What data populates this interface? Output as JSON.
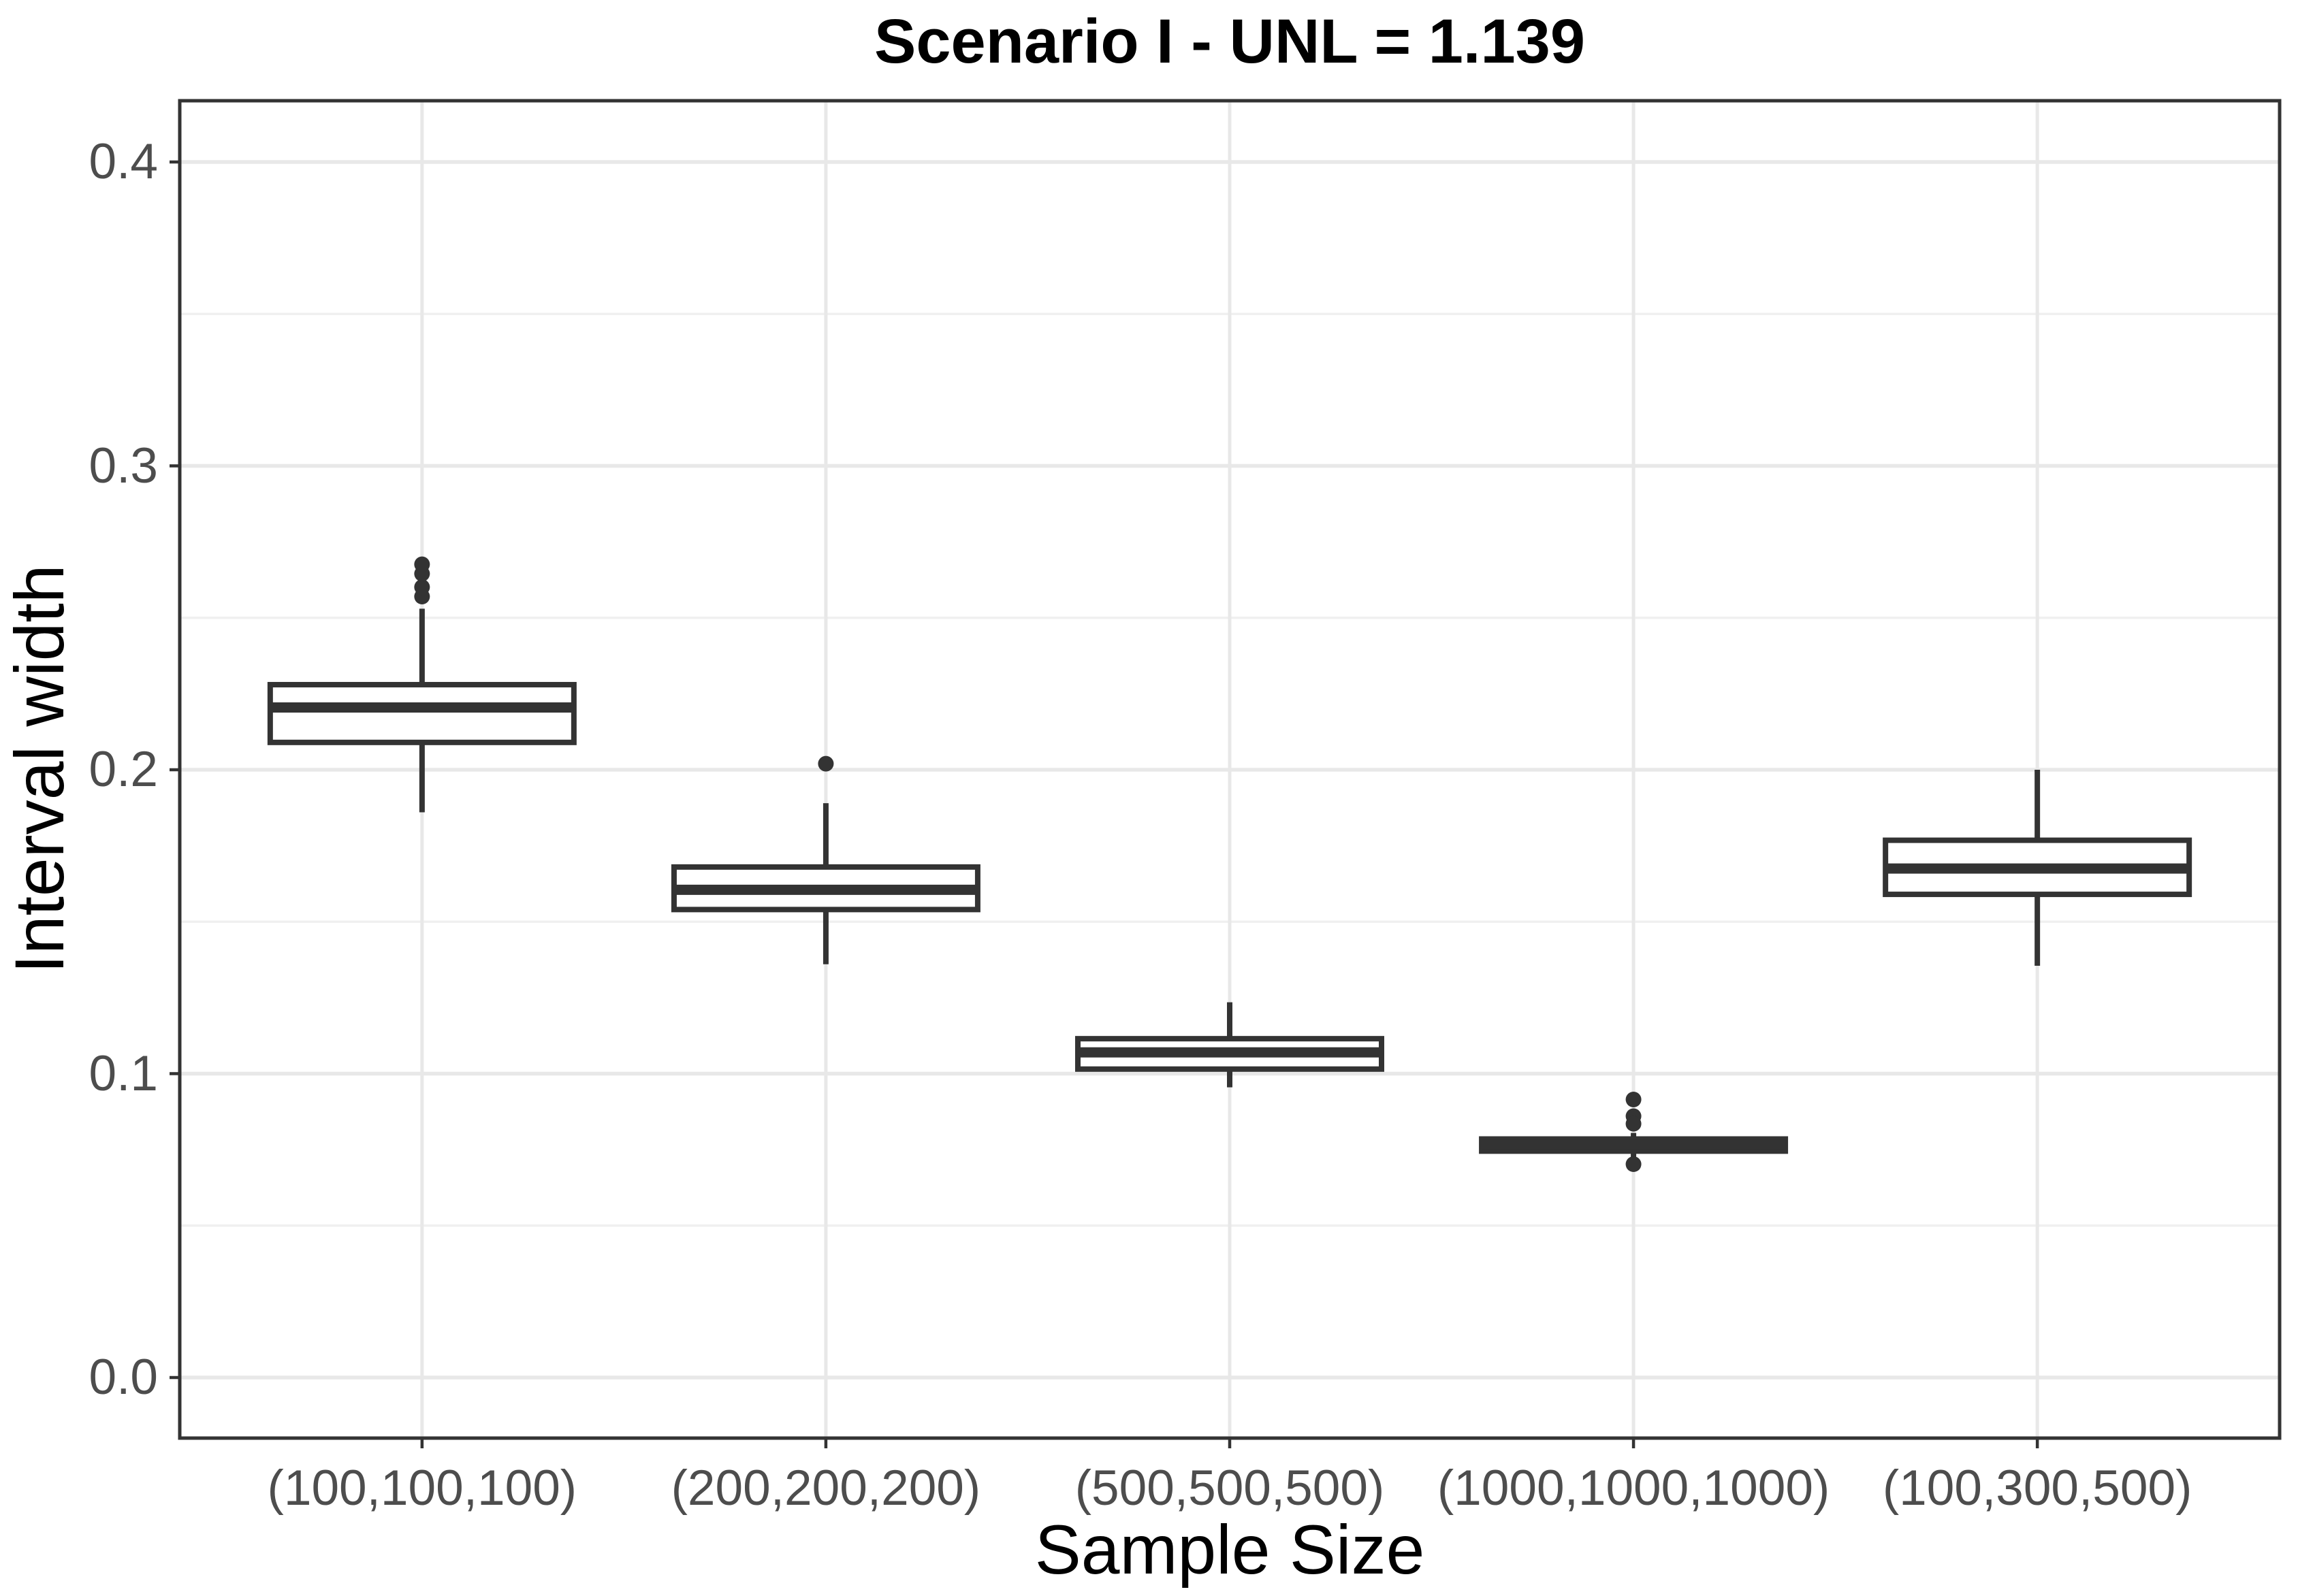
{
  "chart_data": {
    "type": "boxplot",
    "title": "Scenario I - UNL = 1.139",
    "xlabel": "Sample Size",
    "ylabel": "Interval width",
    "categories": [
      "(100,100,100)",
      "(200,200,200)",
      "(500,500,500)",
      "(1000,1000,1000)",
      "(100,300,500)"
    ],
    "y_ticks": [
      "0.0",
      "0.1",
      "0.2",
      "0.3",
      "0.4"
    ],
    "y_tick_values": [
      0.0,
      0.1,
      0.2,
      0.3,
      0.4
    ],
    "y_major_gridlines": [
      0.0,
      0.1,
      0.2,
      0.3,
      0.4
    ],
    "y_minor_gridlines": [
      0.05,
      0.15,
      0.25,
      0.35
    ],
    "ylim": [
      -0.02,
      0.42
    ],
    "grid": true,
    "legend": "none",
    "series": [
      {
        "category": "(100,100,100)",
        "whisker_low": 0.186,
        "q1": 0.209,
        "median": 0.2205,
        "q3": 0.228,
        "whisker_high": 0.253,
        "outliers": [
          0.257,
          0.2601,
          0.2645,
          0.2676
        ]
      },
      {
        "category": "(200,200,200)",
        "whisker_low": 0.136,
        "q1": 0.154,
        "median": 0.1605,
        "q3": 0.168,
        "whisker_high": 0.189,
        "outliers": [
          0.202
        ]
      },
      {
        "category": "(500,500,500)",
        "whisker_low": 0.0955,
        "q1": 0.1015,
        "median": 0.107,
        "q3": 0.1115,
        "whisker_high": 0.1235,
        "outliers": []
      },
      {
        "category": "(1000,1000,1000)",
        "whisker_low": 0.072,
        "q1": 0.0745,
        "median": 0.0765,
        "q3": 0.0785,
        "whisker_high": 0.0805,
        "outliers": [
          0.0915,
          0.086,
          0.0835,
          0.0702
        ]
      },
      {
        "category": "(100,300,500)",
        "whisker_low": 0.1355,
        "q1": 0.159,
        "median": 0.1675,
        "q3": 0.1768,
        "whisker_high": 0.2,
        "outliers": []
      }
    ]
  },
  "colors": {
    "background": "#ffffff",
    "box_stroke": "#333333",
    "box_fill": "#ffffff",
    "outlier": "#333333",
    "grid_major": "#e8e8e8",
    "grid_minor": "#f0f0f0",
    "panel_border": "#333333",
    "tick_mark": "#333333",
    "tick_label": "#4d4d4d",
    "axis_title": "#000000",
    "title": "#000000"
  }
}
